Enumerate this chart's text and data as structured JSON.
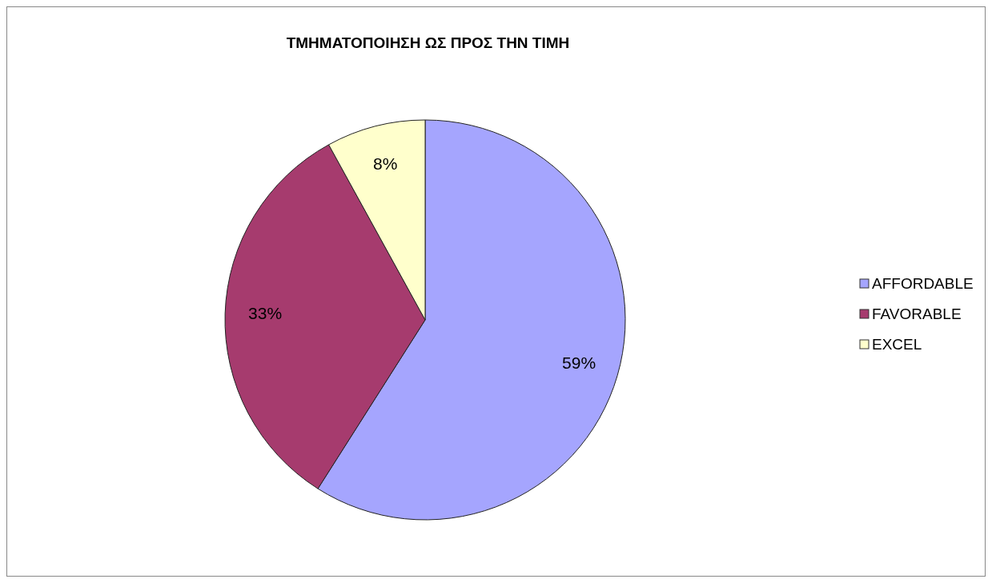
{
  "chart_data": {
    "type": "pie",
    "title": "ΤΜΗΜΑΤΟΠΟΙΗΣΗ ΩΣ ΠΡΟΣ ΤΗΝ ΤΙΜΗ",
    "categories": [
      "AFFORDABLE",
      "FAVORABLE",
      "EXCEL"
    ],
    "values": [
      59,
      33,
      8
    ],
    "colors": [
      "#a5a5fe",
      "#a63b6e",
      "#ffffcc"
    ],
    "value_labels": [
      "59%",
      "33%",
      "8%"
    ],
    "legend": "right"
  }
}
